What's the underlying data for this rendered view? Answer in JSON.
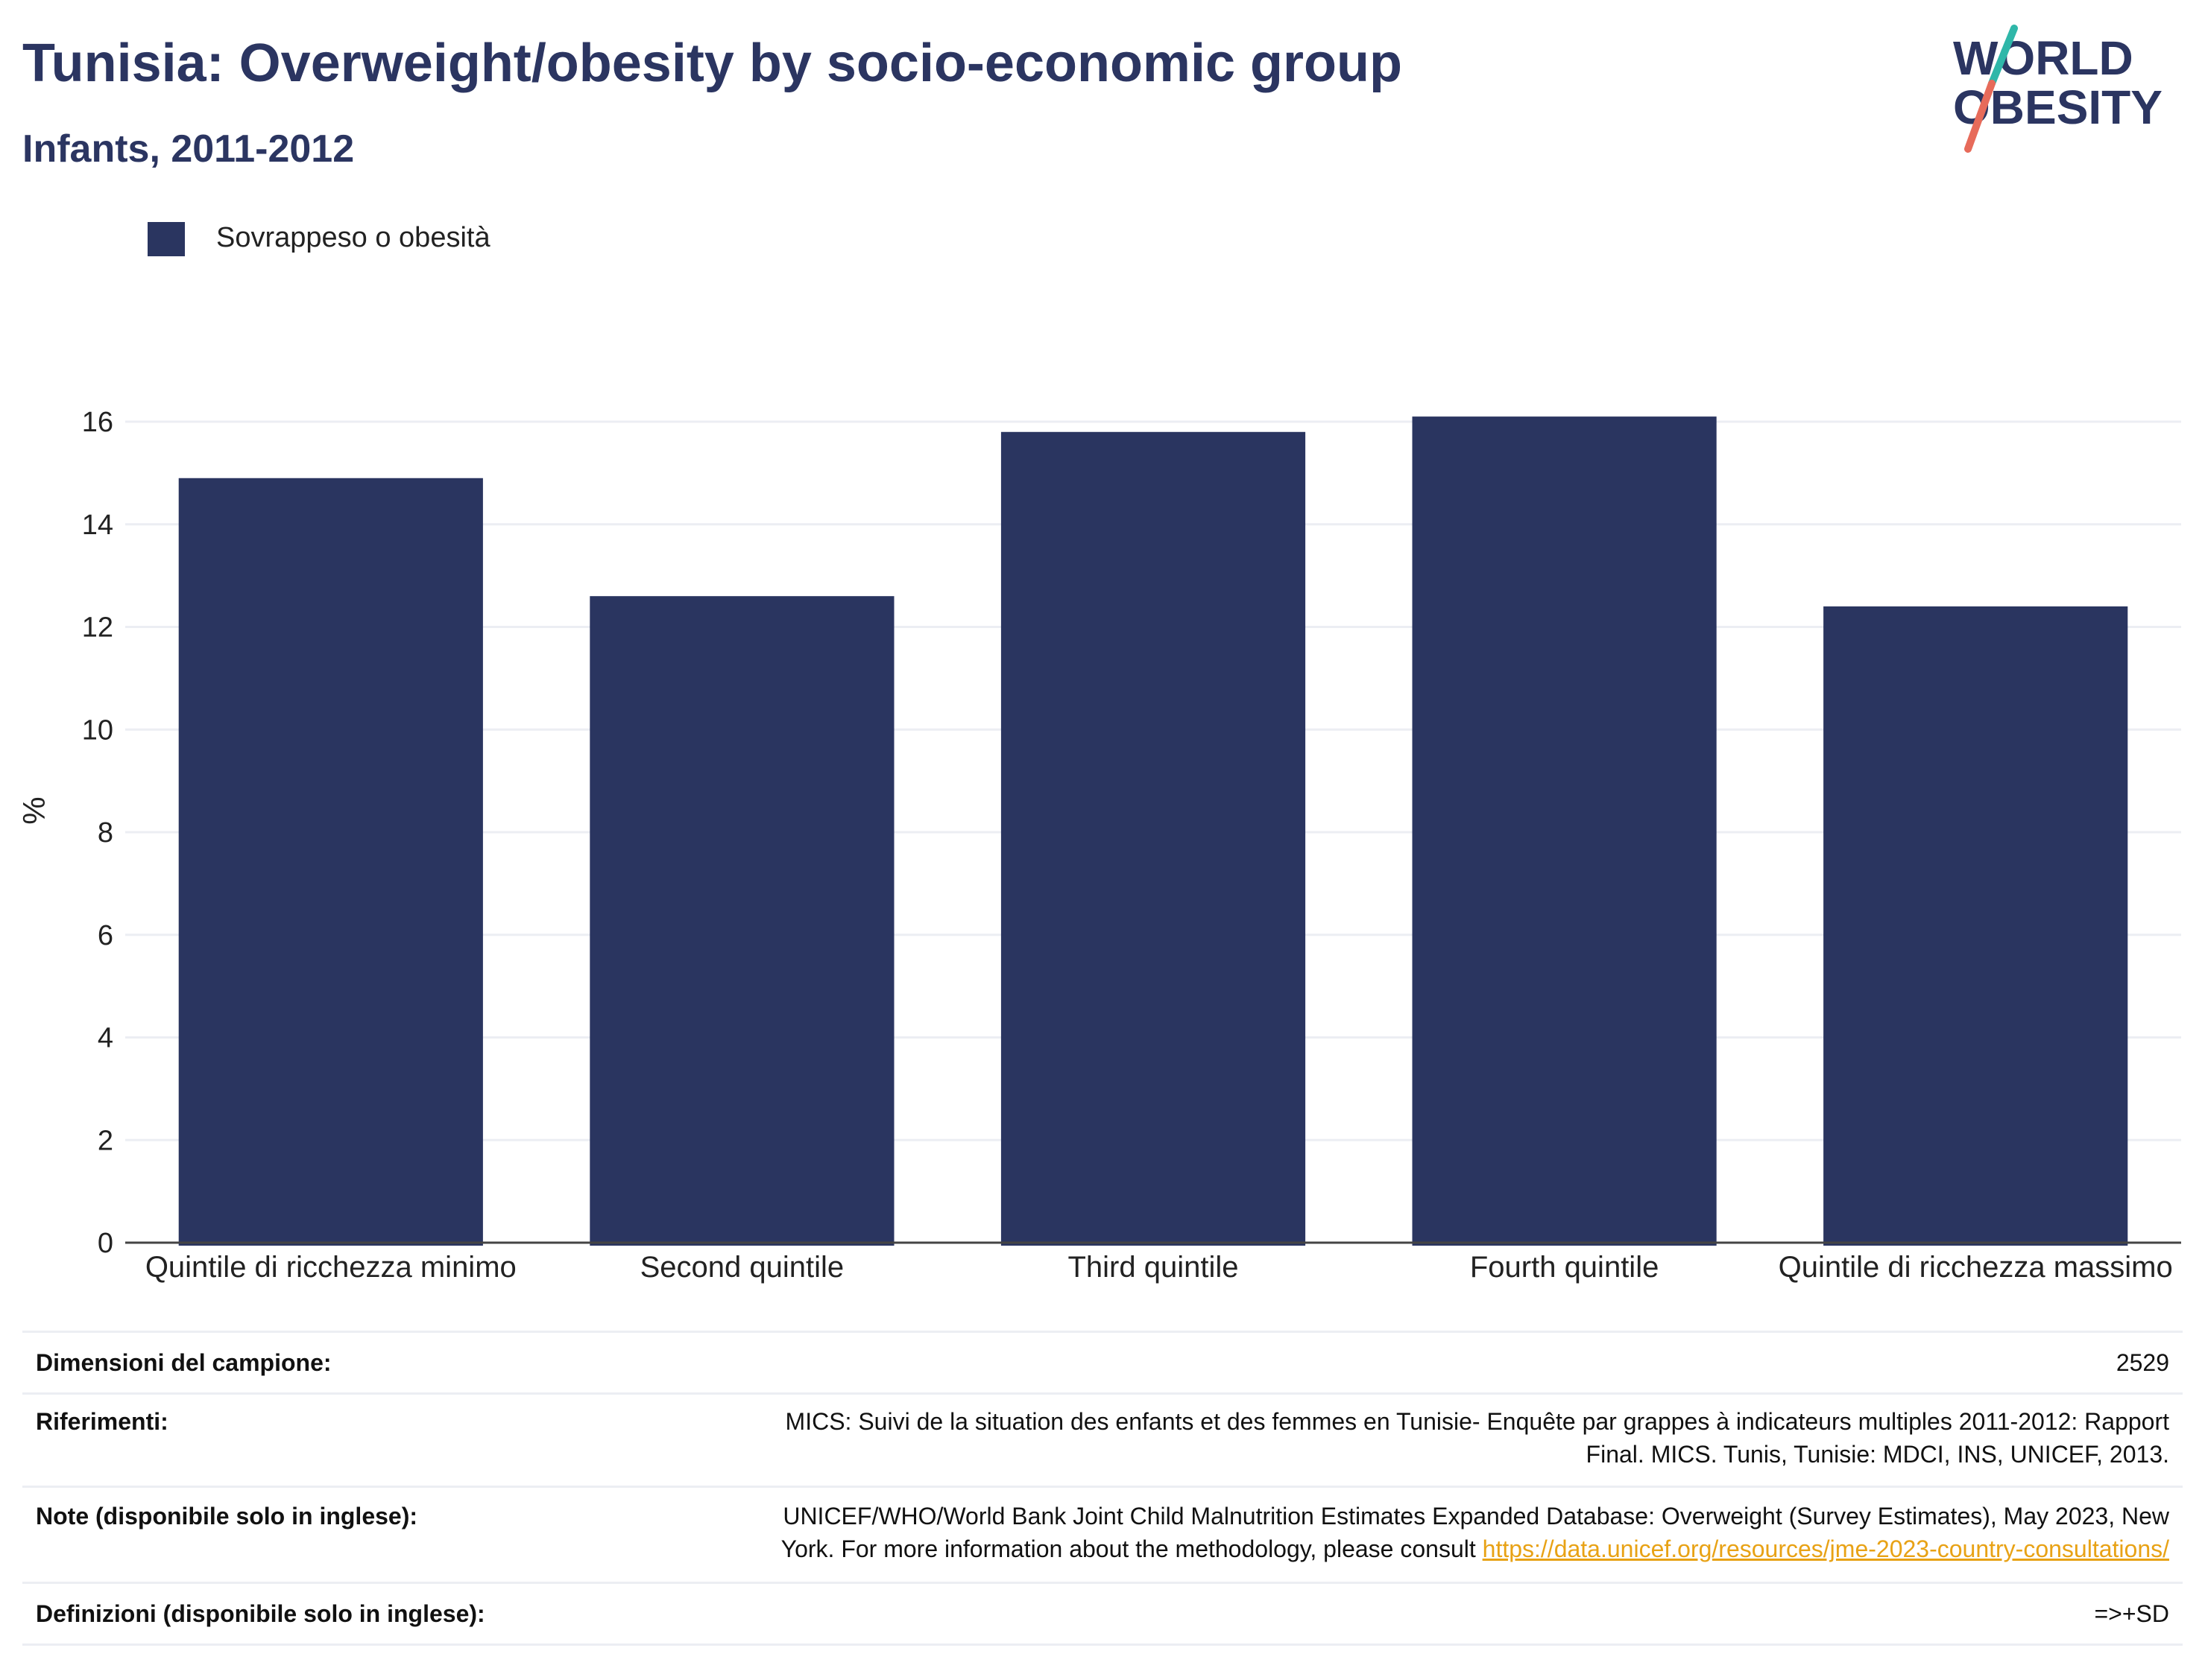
{
  "header": {
    "title": "Tunisia: Overweight/obesity by socio-economic group",
    "subtitle": "Infants, 2011-2012"
  },
  "logo": {
    "line1": "WORLD",
    "line2": "OBESITY"
  },
  "colors": {
    "bar": "#2a3560",
    "title": "#2b3561",
    "logo_teal": "#2fb7a9",
    "logo_coral": "#e76b5a",
    "link": "#e8a215",
    "grid": "#eceef3"
  },
  "legend": {
    "label": "Sovrappeso o obesità"
  },
  "chart_data": {
    "type": "bar",
    "categories": [
      "Quintile di ricchezza minimo",
      "Second quintile",
      "Third quintile",
      "Fourth quintile",
      "Quintile di ricchezza massimo"
    ],
    "series": [
      {
        "name": "Sovrappeso o obesità",
        "values": [
          14.9,
          12.6,
          15.8,
          16.1,
          12.4
        ]
      }
    ],
    "ylabel": "%",
    "xlabel": "",
    "ylim": [
      0,
      16
    ],
    "yticks": [
      0,
      2,
      4,
      6,
      8,
      10,
      12,
      14,
      16
    ],
    "grid": true,
    "legend_position": "top-left"
  },
  "info": {
    "sample_label": "Dimensioni del campione:",
    "sample_value": "2529",
    "references_label": "Riferimenti:",
    "references_line1": "MICS: Suivi de la situation des enfants et des femmes en Tunisie- Enquête par grappes à indicateurs multiples 2011-2012: Rapport",
    "references_line2": "Final. MICS. Tunis, Tunisie: MDCI, INS, UNICEF, 2013.",
    "notes_label": "Note (disponibile solo in inglese):",
    "notes_line1": "UNICEF/WHO/World Bank Joint Child Malnutrition Estimates Expanded Database: Overweight (Survey Estimates), May 2023, New",
    "notes_line2_prefix": "York. For more information about the methodology, please consult",
    "notes_link": "https://data.unicef.org/resources/jme-2023-country-consultations/",
    "definitions_label": "Definizioni (disponibile solo in inglese):",
    "definitions_value": "=>+SD"
  }
}
